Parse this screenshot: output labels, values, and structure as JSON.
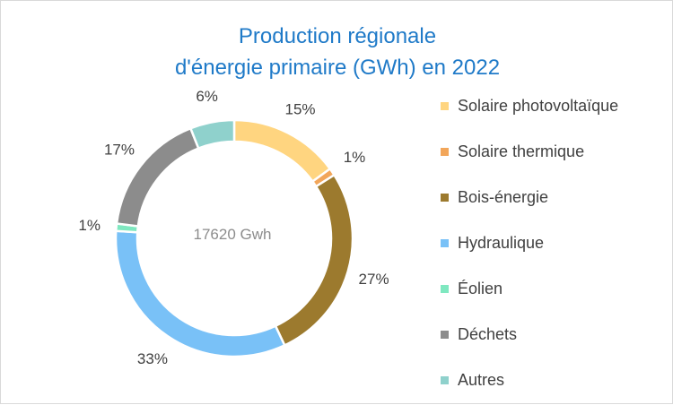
{
  "chart_data": {
    "type": "pie",
    "variant": "donut",
    "title_lines": [
      "Production régionale",
      "d'énergie primaire (GWh) en 2022"
    ],
    "center_label": "17620 Gwh",
    "legend_position": "right",
    "slices": [
      {
        "label": "Solaire photovoltaïque",
        "value": 15,
        "display": "15%",
        "color": "#ffd580"
      },
      {
        "label": "Solaire thermique",
        "value": 1,
        "display": "1%",
        "color": "#f2a65a"
      },
      {
        "label": "Bois-énergie",
        "value": 27,
        "display": "27%",
        "color": "#9c7a2e"
      },
      {
        "label": "Hydraulique",
        "value": 33,
        "display": "33%",
        "color": "#79c1f7"
      },
      {
        "label": "Éolien",
        "value": 1,
        "display": "1%",
        "color": "#7fe8c0"
      },
      {
        "label": "Déchets",
        "value": 17,
        "display": "17%",
        "color": "#8c8c8c"
      },
      {
        "label": "Autres",
        "value": 6,
        "display": "6%",
        "color": "#8fd1cc"
      }
    ]
  }
}
